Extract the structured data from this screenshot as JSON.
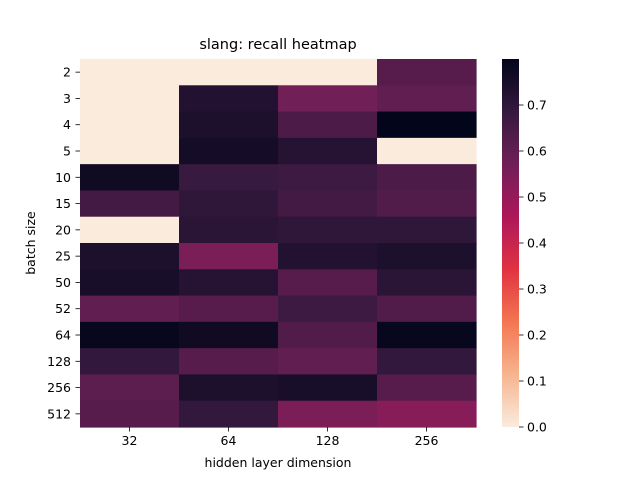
{
  "chart_data": {
    "type": "heatmap",
    "title": "slang: recall heatmap",
    "xlabel": "hidden layer dimension",
    "ylabel": "batch size",
    "x_categories": [
      "32",
      "64",
      "128",
      "256"
    ],
    "y_categories": [
      "2",
      "3",
      "4",
      "5",
      "10",
      "15",
      "20",
      "25",
      "50",
      "52",
      "64",
      "128",
      "256",
      "512"
    ],
    "values": [
      [
        0.0,
        0.0,
        0.0,
        0.62
      ],
      [
        0.0,
        0.73,
        0.57,
        0.6
      ],
      [
        0.0,
        0.74,
        0.64,
        0.8
      ],
      [
        0.0,
        0.76,
        0.72,
        0.0
      ],
      [
        0.77,
        0.68,
        0.67,
        0.64
      ],
      [
        0.66,
        0.7,
        0.66,
        0.63
      ],
      [
        0.0,
        0.71,
        0.7,
        0.7
      ],
      [
        0.74,
        0.55,
        0.73,
        0.74
      ],
      [
        0.75,
        0.72,
        0.62,
        0.71
      ],
      [
        0.6,
        0.62,
        0.67,
        0.63
      ],
      [
        0.79,
        0.77,
        0.63,
        0.79
      ],
      [
        0.69,
        0.62,
        0.6,
        0.69
      ],
      [
        0.61,
        0.74,
        0.75,
        0.62
      ],
      [
        0.62,
        0.69,
        0.55,
        0.53
      ]
    ],
    "colorbar": {
      "vmin": 0.0,
      "vmax": 0.8,
      "ticks": [
        0.0,
        0.1,
        0.2,
        0.3,
        0.4,
        0.5,
        0.6,
        0.7
      ],
      "tick_labels": [
        "0.0",
        "0.1",
        "0.2",
        "0.3",
        "0.4",
        "0.5",
        "0.6",
        "0.7"
      ],
      "colormap": "rocket_r",
      "colors": [
        "#faebdd",
        "#f6b48f",
        "#f37651",
        "#e13342",
        "#ad1759",
        "#701f57",
        "#35193e",
        "#03051a"
      ]
    },
    "grid": false
  }
}
